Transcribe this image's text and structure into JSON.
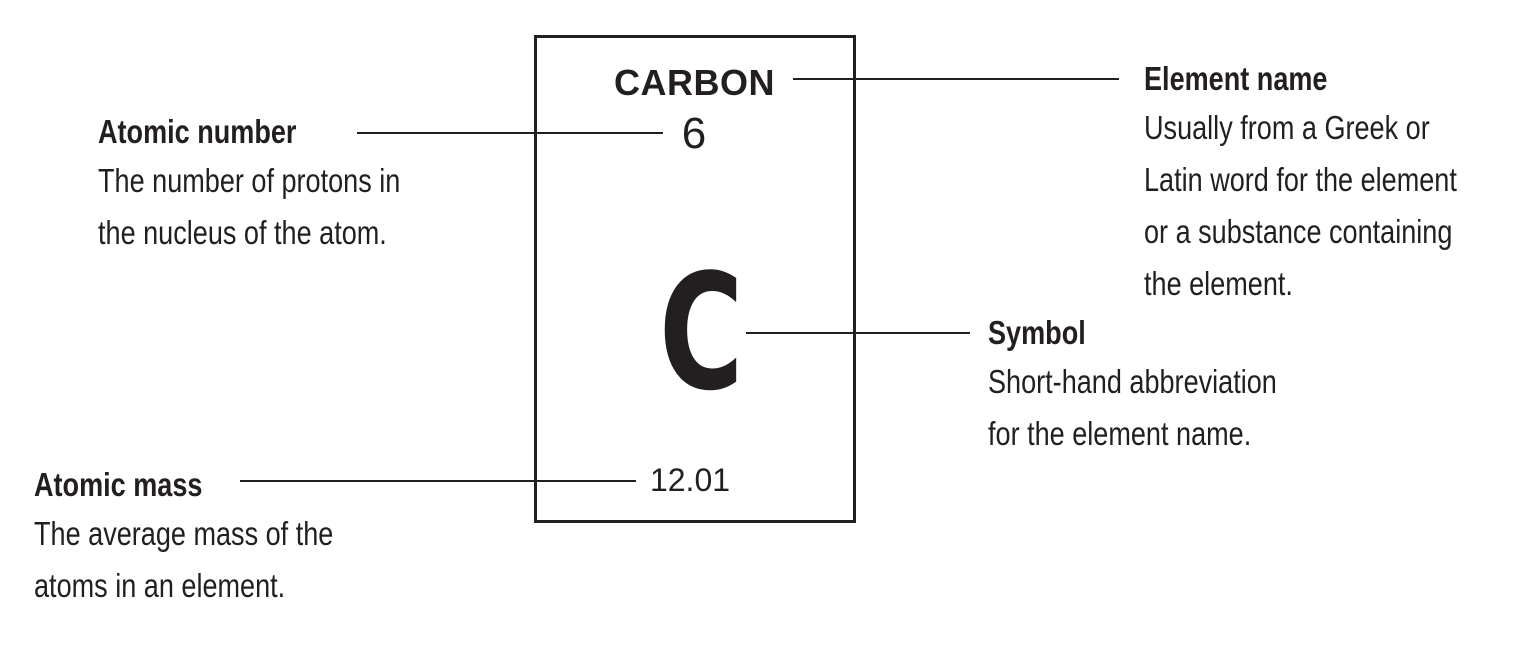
{
  "tile": {
    "name": "CARBON",
    "atomic_number": "6",
    "symbol": "C",
    "atomic_mass": "12.01"
  },
  "callouts": {
    "atomic_number": {
      "title": "Atomic number",
      "lines": [
        "The number of protons in",
        "the nucleus of the atom."
      ]
    },
    "atomic_mass": {
      "title": "Atomic mass",
      "lines": [
        "The average mass of the",
        "atoms in an element."
      ]
    },
    "element_name": {
      "title": "Element name",
      "lines": [
        "Usually from a Greek or",
        "Latin word for the element",
        "or a substance containing",
        "the element."
      ]
    },
    "symbol": {
      "title": "Symbol",
      "lines": [
        "Short-hand abbreviation",
        "for the element name."
      ]
    }
  }
}
